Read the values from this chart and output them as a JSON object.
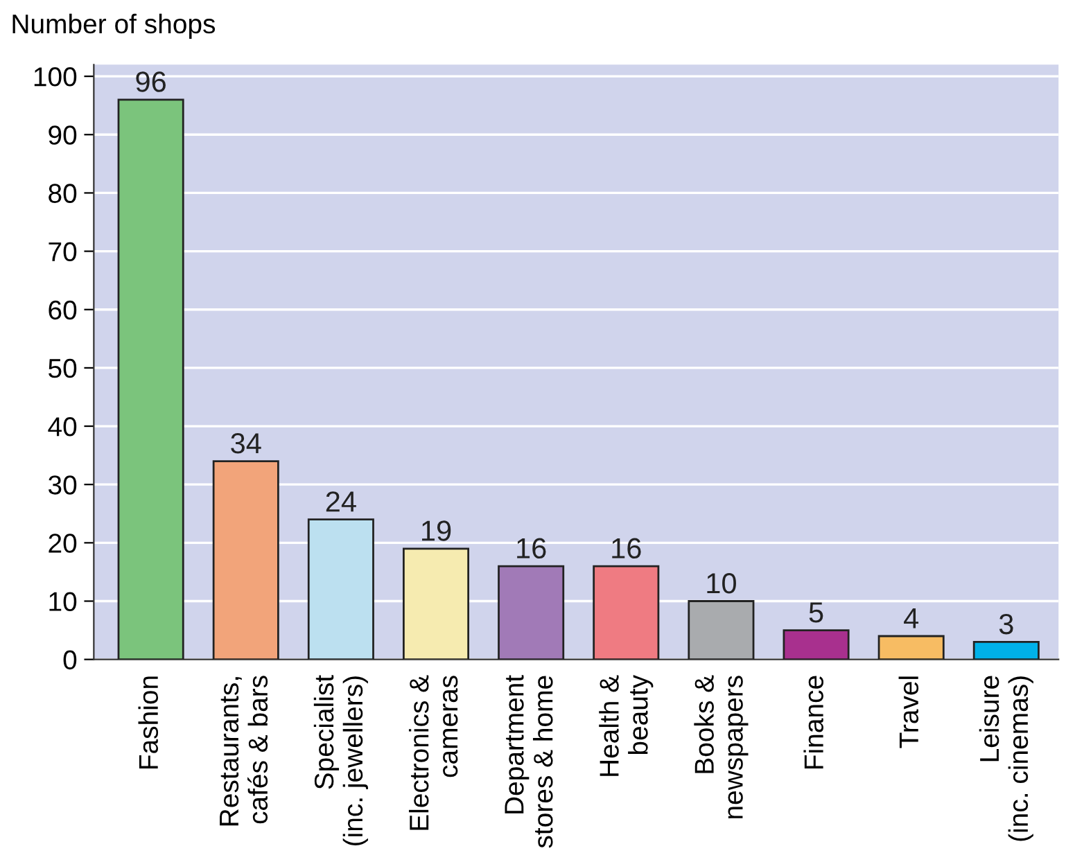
{
  "chart_data": {
    "type": "bar",
    "ylabel": "Number of shops",
    "categories": [
      "Fashion",
      "Restaurants,\ncafés & bars",
      "Specialist\n(inc. jewellers)",
      "Electronics &\ncameras",
      "Department\nstores & home",
      "Health &\nbeauty",
      "Books &\nnewspapers",
      "Finance",
      "Travel",
      "Leisure\n(inc. cinemas)"
    ],
    "values": [
      96,
      34,
      24,
      19,
      16,
      16,
      10,
      5,
      4,
      3
    ],
    "colors": [
      "#7bc47c",
      "#f2a47a",
      "#bce0f0",
      "#f6ebb0",
      "#a17ab7",
      "#ef7b82",
      "#a9abae",
      "#a8308e",
      "#f7bc63",
      "#00b1e9"
    ],
    "ylim": [
      0,
      102
    ],
    "yticks": [
      0,
      10,
      20,
      30,
      40,
      50,
      60,
      70,
      80,
      90,
      100
    ],
    "grid": "y",
    "data_labels": true
  }
}
